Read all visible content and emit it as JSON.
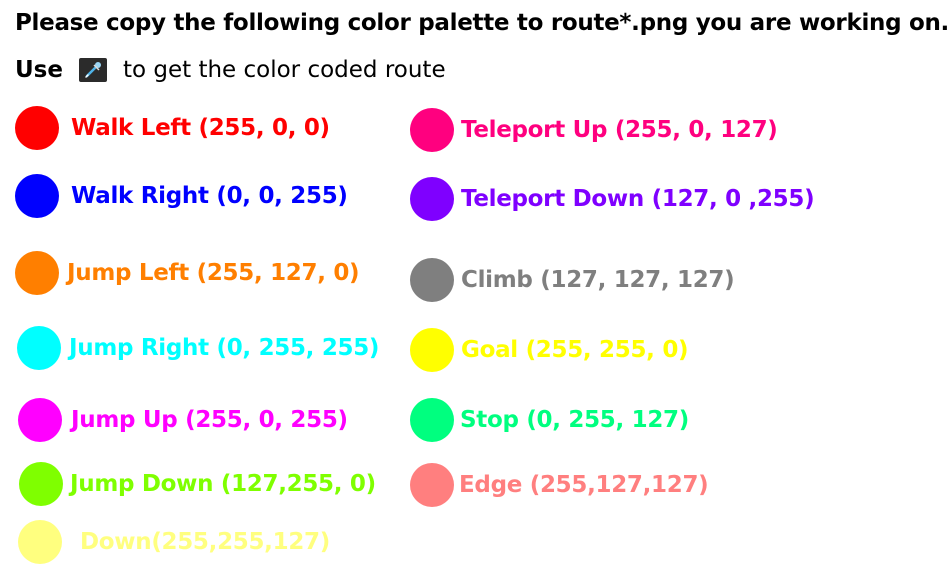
{
  "title": "Please copy the following color palette  to route*.png you are working on.",
  "instruction": {
    "use_word": "Use",
    "icon": "eyedropper-icon",
    "rest": "to get the color coded route"
  },
  "left_column": [
    {
      "label": "Walk Left  (255, 0, 0)",
      "color": "#ff0000"
    },
    {
      "label": "Walk Right  (0, 0, 255)",
      "color": "#0000ff"
    },
    {
      "label": "Jump Left  (255, 127, 0)",
      "color": "#ff7f00"
    },
    {
      "label": "Jump Right  (0, 255, 255)",
      "color": "#00ffff"
    },
    {
      "label": "Jump Up (255, 0, 255)",
      "color": "#ff00ff"
    },
    {
      "label": "Jump Down (127,255, 0)",
      "color": "#7fff00"
    },
    {
      "label": "Down(255,255,127)",
      "color": "#ffff7f"
    }
  ],
  "right_column": [
    {
      "label": "Teleport Up (255, 0, 127)",
      "color": "#ff007f"
    },
    {
      "label": "Teleport Down (127, 0 ,255)",
      "color": "#7f00ff"
    },
    {
      "label": "Climb (127, 127, 127)",
      "color": "#7f7f7f"
    },
    {
      "label": "Goal (255, 255, 0)",
      "color": "#ffff00"
    },
    {
      "label": "Stop (0, 255, 127)",
      "color": "#00ff7f"
    },
    {
      "label": "Edge (255,127,127)",
      "color": "#ff7f7f"
    }
  ]
}
